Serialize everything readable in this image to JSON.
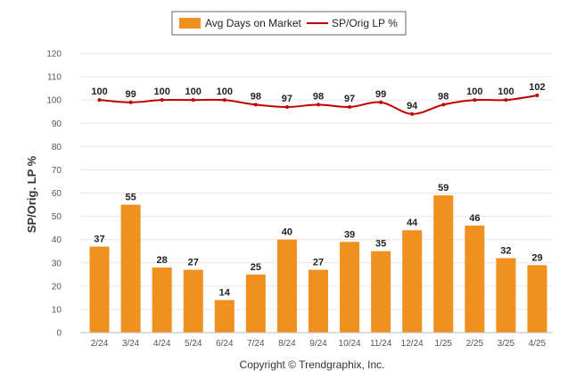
{
  "chart_data": {
    "type": "bar",
    "categories": [
      "2/24",
      "3/24",
      "4/24",
      "5/24",
      "6/24",
      "7/24",
      "8/24",
      "9/24",
      "10/24",
      "11/24",
      "12/24",
      "1/25",
      "2/25",
      "3/25",
      "4/25"
    ],
    "series": [
      {
        "name": "Avg Days on Market",
        "type": "bar",
        "color": "#f0901e",
        "values": [
          37,
          55,
          28,
          27,
          14,
          25,
          40,
          27,
          39,
          35,
          44,
          59,
          46,
          32,
          29
        ]
      },
      {
        "name": "SP/Orig LP %",
        "type": "line",
        "color": "#c00000",
        "values": [
          100,
          99,
          100,
          100,
          100,
          98,
          97,
          98,
          97,
          99,
          94,
          98,
          100,
          100,
          102
        ]
      }
    ],
    "title": "",
    "xlabel": "",
    "ylabel": "SP/Orig. LP %",
    "ylim": [
      0,
      120
    ],
    "yticks": [
      0,
      10,
      20,
      30,
      40,
      50,
      60,
      70,
      80,
      90,
      100,
      110,
      120
    ],
    "grid": true,
    "legend_position": "top-center",
    "footer": "Copyright © Trendgraphix, Inc."
  }
}
